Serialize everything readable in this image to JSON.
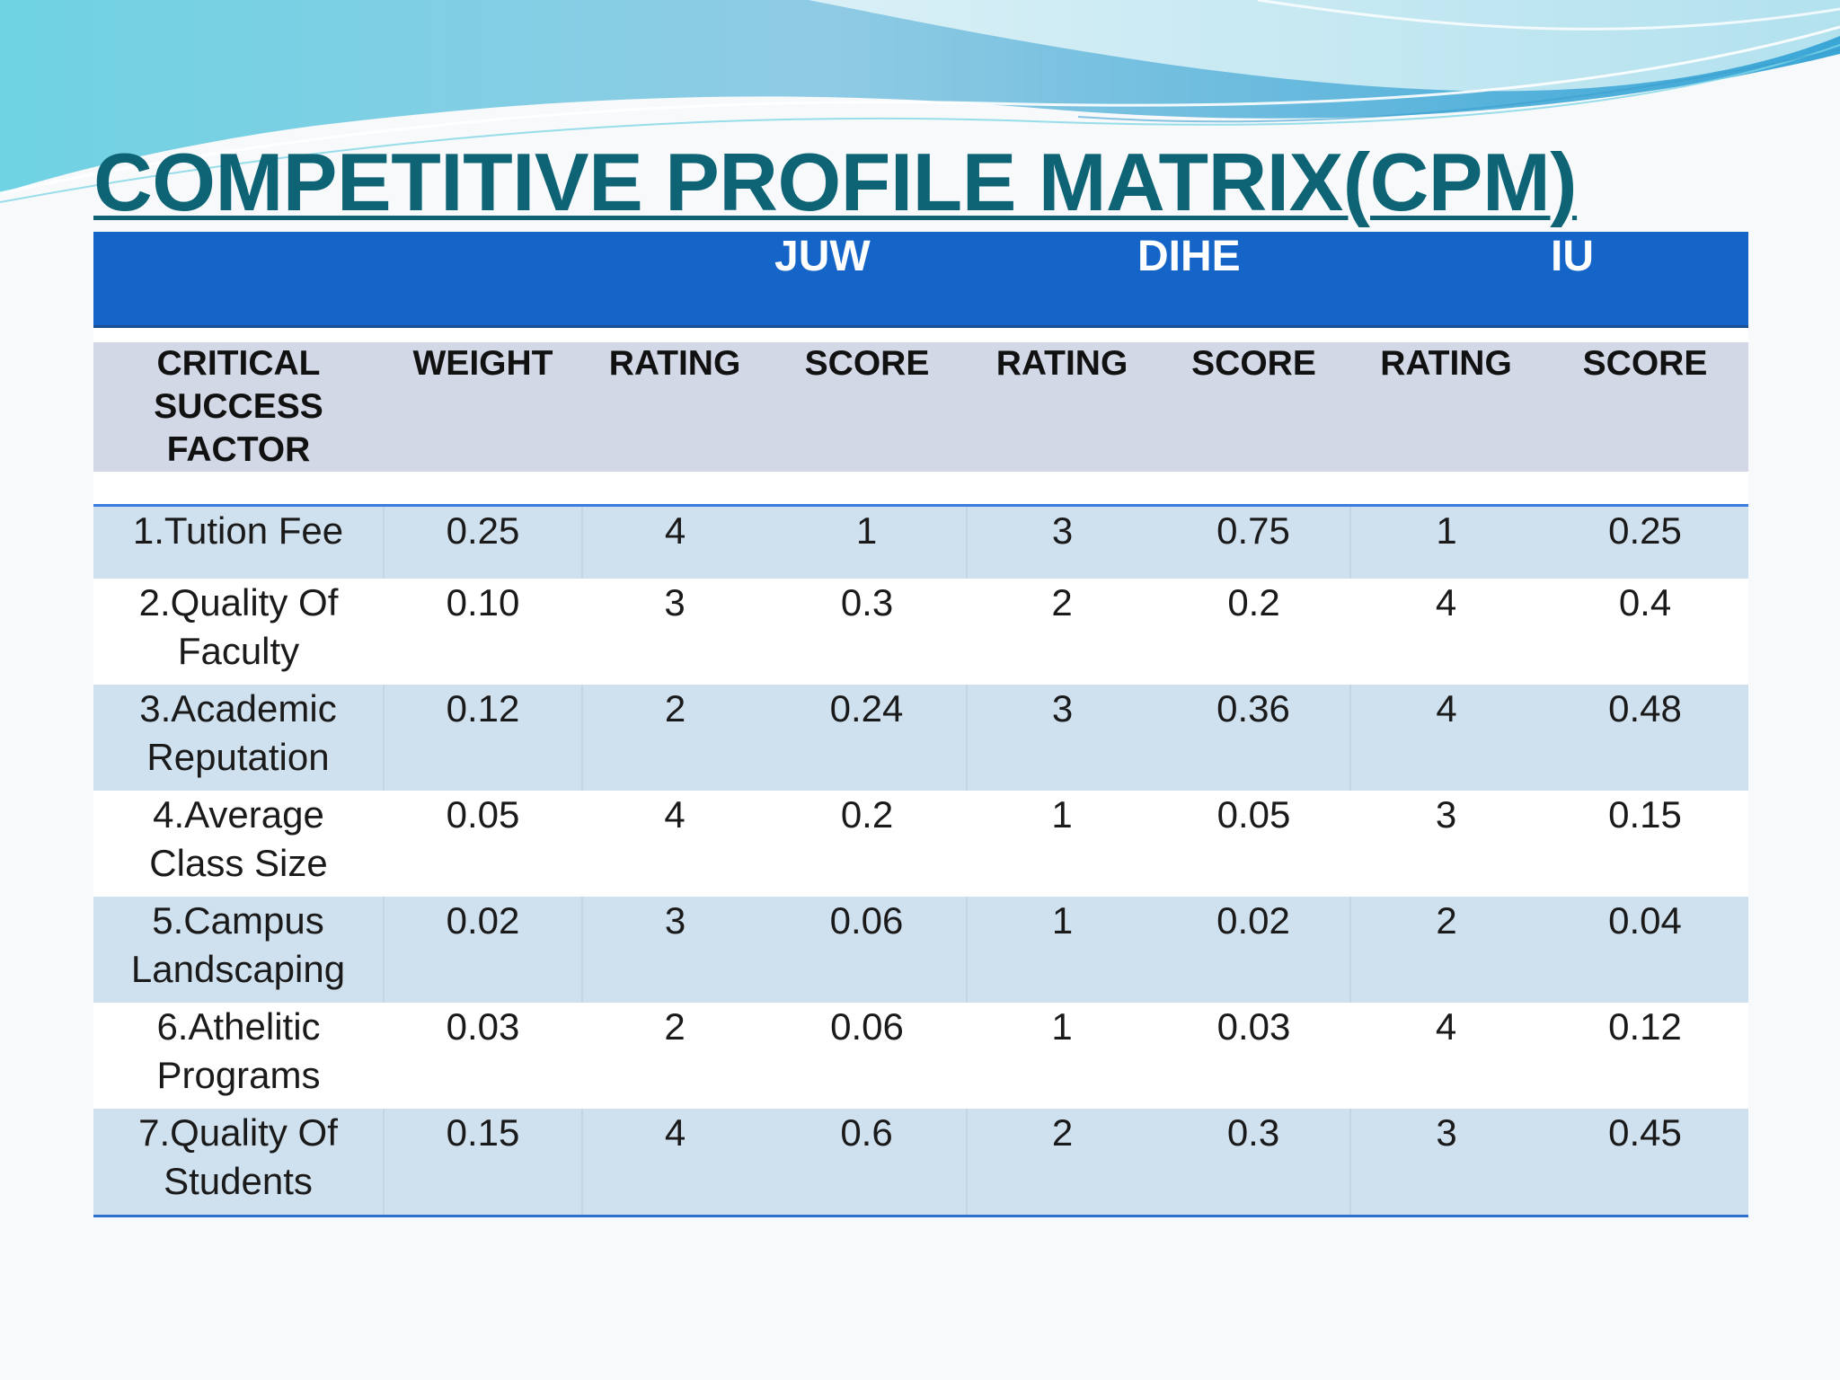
{
  "title": "COMPETITIVE PROFILE MATRIX(CPM)",
  "companies": [
    "JUW",
    "DIHE",
    "IU"
  ],
  "column_headers": {
    "factor": [
      "CRITICAL",
      "SUCCESS",
      "FACTOR"
    ],
    "weight": "WEIGHT",
    "juw_rating": "RATING",
    "juw_score": "SCORE",
    "dihe_rating": "RATING",
    "dihe_score": "SCORE",
    "iu_rating": "RATING",
    "iu_score": "SCORE"
  },
  "rows": [
    {
      "factor": [
        "1.Tution Fee"
      ],
      "weight": "0.25",
      "juw_rating": "4",
      "juw_score": "1",
      "dihe_rating": "3",
      "dihe_score": "0.75",
      "iu_rating": "1",
      "iu_score": "0.25"
    },
    {
      "factor": [
        "2.Quality Of",
        "Faculty"
      ],
      "weight": "0.10",
      "juw_rating": "3",
      "juw_score": "0.3",
      "dihe_rating": "2",
      "dihe_score": "0.2",
      "iu_rating": "4",
      "iu_score": "0.4"
    },
    {
      "factor": [
        "3.Academic",
        "Reputation"
      ],
      "weight": "0.12",
      "juw_rating": "2",
      "juw_score": "0.24",
      "dihe_rating": "3",
      "dihe_score": "0.36",
      "iu_rating": "4",
      "iu_score": "0.48"
    },
    {
      "factor": [
        "4.Average",
        "Class Size"
      ],
      "weight": "0.05",
      "juw_rating": "4",
      "juw_score": "0.2",
      "dihe_rating": "1",
      "dihe_score": "0.05",
      "iu_rating": "3",
      "iu_score": "0.15"
    },
    {
      "factor": [
        "5.Campus",
        "Landscaping"
      ],
      "weight": "0.02",
      "juw_rating": "3",
      "juw_score": "0.06",
      "dihe_rating": "1",
      "dihe_score": "0.02",
      "iu_rating": "2",
      "iu_score": "0.04"
    },
    {
      "factor": [
        "6.Athelitic",
        "Programs"
      ],
      "weight": "0.03",
      "juw_rating": "2",
      "juw_score": "0.06",
      "dihe_rating": "1",
      "dihe_score": "0.03",
      "iu_rating": "4",
      "iu_score": "0.12"
    },
    {
      "factor": [
        "7.Quality Of",
        "Students"
      ],
      "weight": "0.15",
      "juw_rating": "4",
      "juw_score": "0.6",
      "dihe_rating": "2",
      "dihe_score": "0.3",
      "iu_rating": "3",
      "iu_score": "0.45"
    }
  ],
  "colors": {
    "title": "#0e6475",
    "company_band": "#1565c9",
    "header_band": "#d3d8e6",
    "row_shade": "#cfe0ee"
  }
}
